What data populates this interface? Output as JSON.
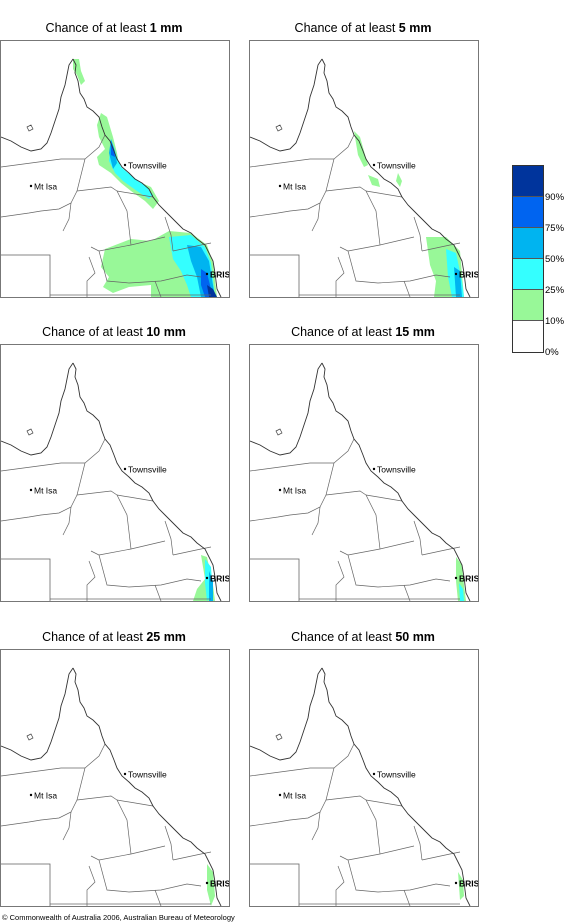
{
  "panels": [
    {
      "prefix": "Chance of at least ",
      "amount": "1 mm"
    },
    {
      "prefix": "Chance of at least ",
      "amount": "5 mm"
    },
    {
      "prefix": "Chance of at least ",
      "amount": "10 mm"
    },
    {
      "prefix": "Chance of at least ",
      "amount": "15 mm"
    },
    {
      "prefix": "Chance of at least ",
      "amount": "25 mm"
    },
    {
      "prefix": "Chance of at least ",
      "amount": "50 mm"
    }
  ],
  "places": {
    "townsville": "Townsville",
    "mt_isa": "Mt Isa",
    "bris": "BRIS"
  },
  "legend": {
    "labels": [
      "90%",
      "75%",
      "50%",
      "25%",
      "10%",
      "0%"
    ],
    "colors": [
      "#00349c",
      "#0064f0",
      "#00b4f0",
      "#34ffff",
      "#98f898",
      "#ffffff"
    ]
  },
  "copyright": "© Commonwealth of Australia 2006, Australian Bureau of Meteorology"
}
